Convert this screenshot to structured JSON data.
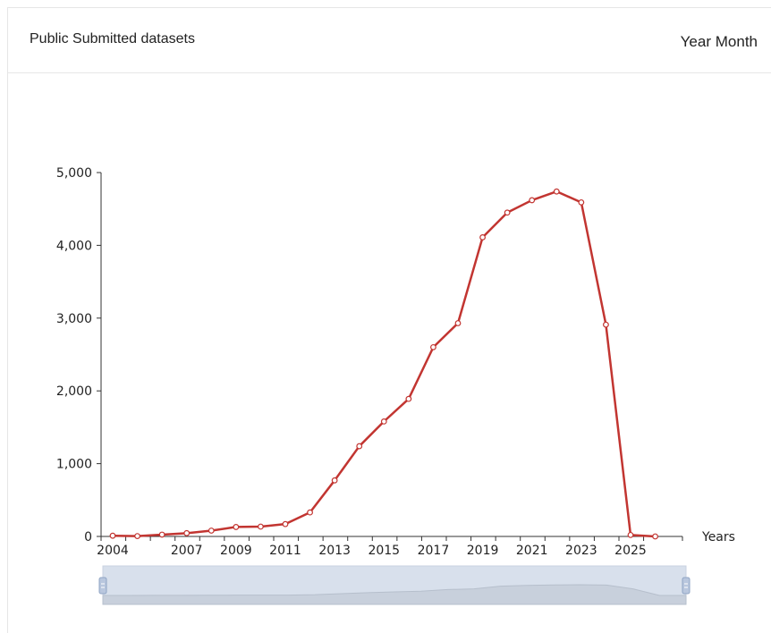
{
  "header": {
    "title": "Public Submitted datasets",
    "toggle_year": "Year",
    "toggle_month": "Month"
  },
  "chart_data": {
    "type": "line",
    "title": "Public Submitted datasets",
    "xlabel": "Years",
    "ylabel": "",
    "ylim": [
      0,
      5000
    ],
    "yticks": [
      "0",
      "1,000",
      "2,000",
      "3,000",
      "4,000",
      "5,000"
    ],
    "xticks": [
      "2004",
      "2007",
      "2009",
      "2011",
      "2013",
      "2015",
      "2017",
      "2019",
      "2021",
      "2023",
      "2025"
    ],
    "grid": false,
    "color": "#c23531",
    "x": [
      2004,
      2005,
      2006,
      2007,
      2008,
      2009,
      2010,
      2011,
      2012,
      2013,
      2014,
      2015,
      2016,
      2017,
      2018,
      2019,
      2020,
      2021,
      2022,
      2023,
      2024,
      2025,
      2026
    ],
    "values": [
      10,
      5,
      25,
      45,
      80,
      130,
      135,
      170,
      330,
      770,
      1240,
      1580,
      1890,
      2600,
      2930,
      4110,
      4450,
      4620,
      4740,
      4590,
      2910,
      20,
      0
    ]
  },
  "zoom_slider": {
    "fill_color": "#d8e0ec",
    "start_fraction": 0,
    "end_fraction": 1
  }
}
